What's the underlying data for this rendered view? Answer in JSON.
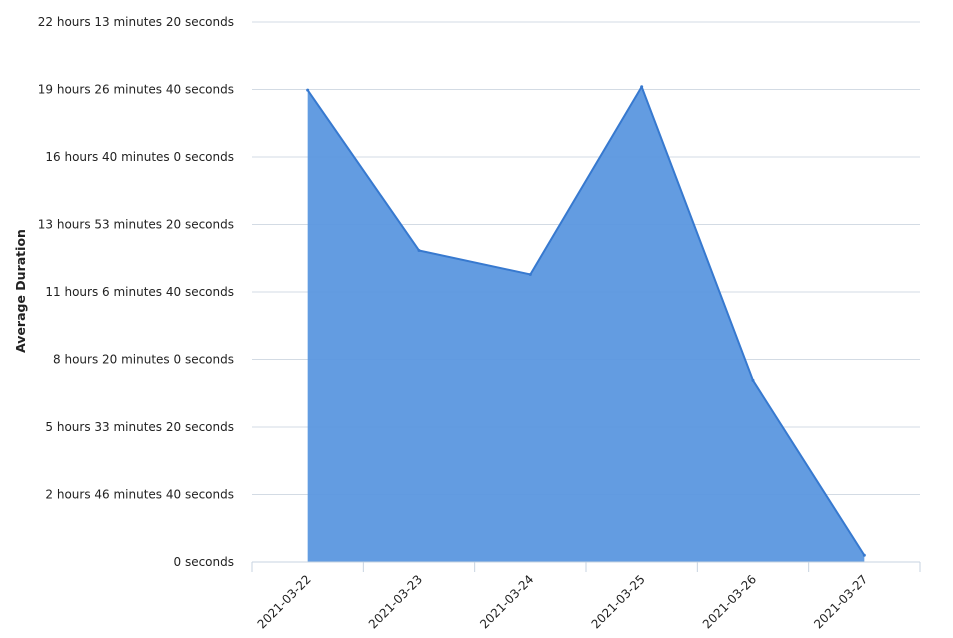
{
  "chart_data": {
    "type": "area",
    "ylabel": "Average Duration",
    "xlabel": "",
    "title": "",
    "x": [
      "2021-03-22",
      "2021-03-23",
      "2021-03-24",
      "2021-03-25",
      "2021-03-26",
      "2021-03-27"
    ],
    "series": [
      {
        "values": [
          69900,
          46150,
          42600,
          70400,
          26900,
          1000
        ]
      }
    ],
    "ylim": [
      0,
      80000
    ],
    "yticks": [
      {
        "value": 0,
        "label": "0 seconds"
      },
      {
        "value": 10000,
        "label": "2 hours 46 minutes 40 seconds"
      },
      {
        "value": 20000,
        "label": "5 hours 33 minutes 20 seconds"
      },
      {
        "value": 30000,
        "label": "8 hours 20 minutes 0 seconds"
      },
      {
        "value": 40000,
        "label": "11 hours 6 minutes 40 seconds"
      },
      {
        "value": 50000,
        "label": "13 hours 53 minutes 20 seconds"
      },
      {
        "value": 60000,
        "label": "16 hours 40 minutes 0 seconds"
      },
      {
        "value": 70000,
        "label": "19 hours 26 minutes 40 seconds"
      },
      {
        "value": 80000,
        "label": "22 hours 13 minutes 20 seconds"
      }
    ],
    "grid": true,
    "legend": "none",
    "colors": {
      "fill": "#5b97df",
      "line": "#3779cf"
    }
  }
}
